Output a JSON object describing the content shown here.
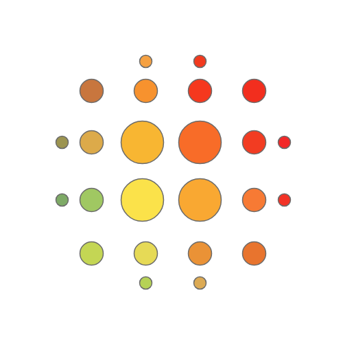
{
  "chart_data": {
    "type": "bubble",
    "x": [
      -38,
      41,
      -117,
      -38,
      41,
      120,
      -160,
      -117,
      -43,
      41,
      120,
      164,
      -160,
      -117,
      -43,
      41,
      120,
      164,
      -117,
      -38,
      41,
      120,
      -38,
      41
    ],
    "y": [
      161,
      161,
      118,
      118,
      118,
      118,
      43,
      43,
      43,
      43,
      43,
      43,
      -41,
      -41,
      -41,
      -41,
      -41,
      -41,
      -119,
      -119,
      -119,
      -119,
      -162,
      -162
    ],
    "sizes": [
      9,
      9,
      17,
      17,
      17,
      17,
      9,
      17,
      31,
      31,
      17,
      9,
      9,
      17,
      31,
      31,
      17,
      9,
      17,
      17,
      17,
      17,
      9,
      9
    ],
    "colors": [
      "#f5a142",
      "#f23a1e",
      "#c8763e",
      "#f7922e",
      "#f5381e",
      "#f22e1e",
      "#9c9450",
      "#dcaa4a",
      "#f8b632",
      "#f86c28",
      "#f23c22",
      "#f22828",
      "#7eaa66",
      "#a0c862",
      "#fbe24a",
      "#f9a832",
      "#f77a34",
      "#f23226",
      "#c4d654",
      "#e6da56",
      "#ea9236",
      "#e8742e",
      "#b6d256",
      "#dcaa54"
    ],
    "xlim": [
      -250,
      250
    ],
    "ylim": [
      -250,
      250
    ],
    "tick_labels": false
  }
}
